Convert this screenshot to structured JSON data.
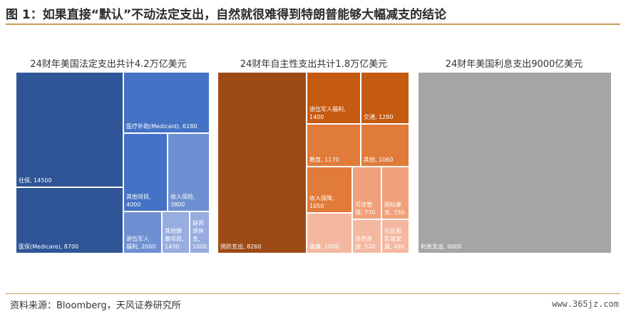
{
  "header": {
    "title": "图 1：如果直接“默认”不动法定支出，自然就很难得到特朗普能够大幅减支的结论"
  },
  "footer": {
    "source": "资料来源：Bloomberg，天风证券研究所",
    "watermark": "www.365jz.com"
  },
  "colors": {
    "mandatory": "#2f5597",
    "mandatory_mid": "#4472c4",
    "mandatory_light": "#6e8fd1",
    "mandatory_lighter": "#97acdf",
    "defense": "#9e4a16",
    "discretionary": "#c55a11",
    "discretionary_mid": "#e07b39",
    "discretionary_light": "#f0a07a",
    "discretionary_lighter": "#f4b8a0",
    "interest": "#a5a5a5",
    "rule": "#c99a55"
  },
  "chart_data": [
    {
      "type": "treemap",
      "title": "24财年美国法定支出共计4.2万亿美元",
      "items": [
        {
          "name": "社保",
          "value": 14500,
          "label": "社保, 14500"
        },
        {
          "name": "医保(Medicare)",
          "value": 8700,
          "label": "医保(Medicare), 8700"
        },
        {
          "name": "医疗补助(Medicaid)",
          "value": 6180,
          "label": "医疗补助(Medicaid), 6180"
        },
        {
          "name": "其他项目",
          "value": 4000,
          "label": "其他项目,\n4000"
        },
        {
          "name": "收入保险",
          "value": 3800,
          "label": "收入保险,\n3800"
        },
        {
          "name": "退伍军人福利",
          "value": 2000,
          "label": "退伍军人\n福利, 2000"
        },
        {
          "name": "其他健康项目",
          "value": 1430,
          "label": "其他健\n康项目,\n1430"
        },
        {
          "name": "联邦退休金",
          "value": 1000,
          "label": "联邦\n退休\n金,\n1000"
        }
      ]
    },
    {
      "type": "treemap",
      "title": "24财年自主性支出共计1.8万亿美元",
      "items": [
        {
          "name": "国防支出",
          "value": 8260,
          "label": "国防支出, 8260"
        },
        {
          "name": "退伍军人福利",
          "value": 1400,
          "label": "退伍军人福利,\n1400"
        },
        {
          "name": "交通",
          "value": 1280,
          "label": "交通, 1280"
        },
        {
          "name": "教育",
          "value": 1170,
          "label": "教育, 1170"
        },
        {
          "name": "其他",
          "value": 1060,
          "label": "其他, 1060"
        },
        {
          "name": "收入保障",
          "value": 1050,
          "label": "收入保障,\n1050"
        },
        {
          "name": "司法管理",
          "value": 770,
          "label": "司法管\n理, 770"
        },
        {
          "name": "国际事务",
          "value": 750,
          "label": "国际事\n务, 750"
        },
        {
          "name": "健康",
          "value": 1000,
          "label": "健康, 1000"
        },
        {
          "name": "自然资源",
          "value": 520,
          "label": "自然资\n源, 520"
        },
        {
          "name": "社区和区域发展",
          "value": 490,
          "label": "社区和\n区域发\n展, 490"
        }
      ]
    },
    {
      "type": "treemap",
      "title": "24财年美国利息支出9000亿美元",
      "items": [
        {
          "name": "利息支出",
          "value": 9000,
          "label": "利息支出, 9000"
        }
      ]
    }
  ]
}
